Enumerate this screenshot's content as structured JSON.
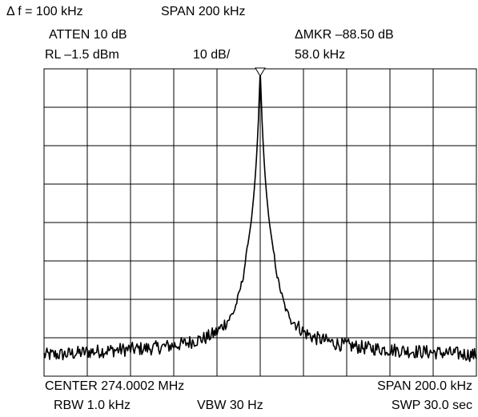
{
  "header": {
    "delta_f": "Δ f = 100 kHz",
    "span_top": "SPAN 200 kHz",
    "atten": "ATTEN 10 dB",
    "rl": "RL –1.5 dBm",
    "scale": "10 dB/",
    "marker_delta": "ΔMKR –88.50 dB",
    "marker_freq": "58.0 kHz"
  },
  "footer": {
    "center": "CENTER 274.0002 MHz",
    "span": "SPAN 200.0 kHz",
    "rbw": "RBW 1.0 kHz",
    "vbw": "VBW 30 Hz",
    "swp": "SWP 30.0 sec"
  },
  "chart_data": {
    "type": "line",
    "grid": true,
    "x_divisions": 10,
    "y_divisions": 8,
    "xlim": [
      -100,
      100
    ],
    "ylim": [
      -81.5,
      -1.5
    ],
    "x_unit": "kHz offset from center",
    "y_unit": "dBm",
    "marker": {
      "x": 0,
      "symbol": "triangle-down"
    },
    "series": [
      {
        "x": [
          -100,
          -90,
          -80,
          -70,
          -60,
          -50,
          -40,
          -35,
          -30,
          -25,
          -20,
          -15,
          -12,
          -10,
          -8,
          -6,
          -4,
          -3,
          -2,
          -1,
          0,
          1,
          2,
          3,
          4,
          6,
          8,
          10,
          12,
          15,
          20,
          25,
          30,
          35,
          40,
          50,
          60,
          70,
          80,
          90,
          100
        ],
        "values": [
          -76.0,
          -75.8,
          -75.2,
          -74.8,
          -74.5,
          -74.2,
          -73.5,
          -73.0,
          -72.2,
          -71.5,
          -70.0,
          -67.0,
          -64.5,
          -60.5,
          -56.0,
          -48.5,
          -40.5,
          -34.5,
          -27.5,
          -17.0,
          -2.0,
          -17.0,
          -27.5,
          -34.5,
          -40.5,
          -48.5,
          -56.0,
          -60.5,
          -64.5,
          -67.0,
          -70.0,
          -71.5,
          -72.2,
          -73.0,
          -73.5,
          -74.2,
          -74.6,
          -75.0,
          -75.3,
          -75.6,
          -76.0
        ]
      }
    ]
  }
}
